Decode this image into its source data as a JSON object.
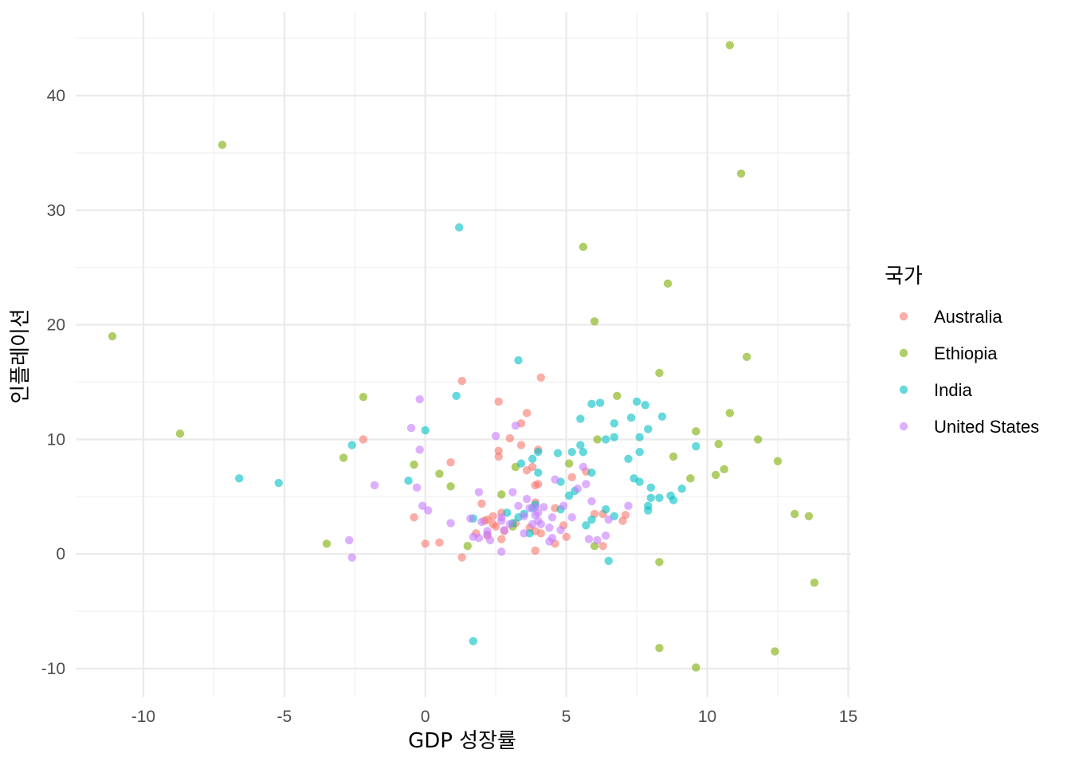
{
  "chart_data": {
    "type": "scatter",
    "title": "",
    "xlabel": "GDP 성장률",
    "ylabel": "인플레이션",
    "xlim": [
      -12.4,
      15.1
    ],
    "ylim": [
      -12.5,
      47.3
    ],
    "xticks": [
      -10,
      -5,
      0,
      5,
      10,
      15
    ],
    "yticks": [
      -10,
      0,
      10,
      20,
      30,
      40
    ],
    "grid": true,
    "legend": {
      "title": "국가",
      "position": "right"
    },
    "series": [
      {
        "name": "Australia",
        "color": "#F8766D",
        "points": [
          [
            1.3,
            15.1
          ],
          [
            4.1,
            15.4
          ],
          [
            2.6,
            13.3
          ],
          [
            3.6,
            12.3
          ],
          [
            3.4,
            11.4
          ],
          [
            -2.2,
            10.0
          ],
          [
            3.0,
            10.1
          ],
          [
            3.4,
            9.5
          ],
          [
            2.6,
            9.0
          ],
          [
            4.0,
            9.1
          ],
          [
            2.6,
            8.5
          ],
          [
            0.9,
            8.0
          ],
          [
            3.8,
            7.6
          ],
          [
            3.6,
            7.3
          ],
          [
            5.7,
            7.2
          ],
          [
            5.2,
            6.7
          ],
          [
            4.0,
            6.1
          ],
          [
            3.9,
            6.0
          ],
          [
            2.0,
            4.4
          ],
          [
            3.9,
            4.5
          ],
          [
            4.6,
            4.0
          ],
          [
            -0.4,
            3.2
          ],
          [
            2.4,
            3.3
          ],
          [
            2.2,
            3.0
          ],
          [
            2.7,
            3.6
          ],
          [
            6.0,
            3.5
          ],
          [
            6.3,
            3.5
          ],
          [
            7.1,
            3.4
          ],
          [
            7.0,
            2.9
          ],
          [
            4.9,
            2.5
          ],
          [
            2.5,
            2.4
          ],
          [
            3.7,
            2.3
          ],
          [
            2.8,
            2.0
          ],
          [
            3.9,
            2.0
          ],
          [
            4.1,
            1.8
          ],
          [
            1.8,
            1.8
          ],
          [
            2.2,
            1.6
          ],
          [
            5.0,
            1.5
          ],
          [
            2.7,
            1.3
          ],
          [
            0.5,
            1.0
          ],
          [
            0.0,
            0.9
          ],
          [
            4.6,
            0.9
          ],
          [
            6.3,
            0.7
          ],
          [
            3.9,
            0.3
          ],
          [
            1.3,
            -0.3
          ],
          [
            2.4,
            2.6
          ],
          [
            3.2,
            2.7
          ],
          [
            2.1,
            2.9
          ]
        ]
      },
      {
        "name": "Ethiopia",
        "color": "#7CAE00",
        "points": [
          [
            10.8,
            44.4
          ],
          [
            -7.2,
            35.7
          ],
          [
            11.2,
            33.2
          ],
          [
            5.6,
            26.8
          ],
          [
            8.6,
            23.6
          ],
          [
            -11.1,
            19.0
          ],
          [
            6.0,
            20.3
          ],
          [
            11.4,
            17.2
          ],
          [
            8.3,
            15.8
          ],
          [
            -2.2,
            13.7
          ],
          [
            6.8,
            13.8
          ],
          [
            10.8,
            12.3
          ],
          [
            -8.7,
            10.5
          ],
          [
            9.6,
            10.7
          ],
          [
            6.1,
            10.0
          ],
          [
            10.4,
            9.6
          ],
          [
            11.8,
            10.0
          ],
          [
            -2.9,
            8.4
          ],
          [
            8.8,
            8.5
          ],
          [
            12.5,
            8.1
          ],
          [
            -0.4,
            7.8
          ],
          [
            5.1,
            7.9
          ],
          [
            10.6,
            7.4
          ],
          [
            3.2,
            7.6
          ],
          [
            10.3,
            6.9
          ],
          [
            0.5,
            7.0
          ],
          [
            9.4,
            6.6
          ],
          [
            0.9,
            5.9
          ],
          [
            2.7,
            5.2
          ],
          [
            13.1,
            3.5
          ],
          [
            13.6,
            3.3
          ],
          [
            3.1,
            2.4
          ],
          [
            -3.5,
            0.9
          ],
          [
            1.5,
            0.7
          ],
          [
            6.0,
            0.7
          ],
          [
            8.3,
            -0.7
          ],
          [
            13.8,
            -2.5
          ],
          [
            8.3,
            -8.2
          ],
          [
            9.6,
            -9.9
          ],
          [
            12.4,
            -8.5
          ]
        ]
      },
      {
        "name": "India",
        "color": "#00BFC4",
        "points": [
          [
            1.2,
            28.5
          ],
          [
            3.3,
            16.9
          ],
          [
            1.1,
            13.8
          ],
          [
            7.8,
            13.0
          ],
          [
            7.5,
            13.3
          ],
          [
            6.2,
            13.2
          ],
          [
            5.9,
            13.1
          ],
          [
            8.4,
            12.0
          ],
          [
            7.3,
            11.9
          ],
          [
            5.5,
            11.8
          ],
          [
            6.7,
            11.4
          ],
          [
            0.0,
            10.8
          ],
          [
            7.9,
            10.9
          ],
          [
            6.4,
            10.0
          ],
          [
            6.7,
            10.2
          ],
          [
            7.6,
            10.2
          ],
          [
            -2.6,
            9.5
          ],
          [
            5.5,
            9.5
          ],
          [
            9.6,
            9.4
          ],
          [
            5.6,
            8.9
          ],
          [
            5.2,
            8.9
          ],
          [
            4.7,
            8.8
          ],
          [
            4.0,
            8.9
          ],
          [
            7.6,
            8.9
          ],
          [
            7.2,
            8.3
          ],
          [
            3.8,
            8.3
          ],
          [
            3.4,
            7.9
          ],
          [
            4.0,
            7.1
          ],
          [
            5.9,
            7.1
          ],
          [
            7.4,
            6.6
          ],
          [
            7.6,
            6.3
          ],
          [
            4.8,
            6.3
          ],
          [
            -6.6,
            6.6
          ],
          [
            -5.2,
            6.2
          ],
          [
            -0.6,
            6.4
          ],
          [
            9.1,
            5.7
          ],
          [
            8.0,
            5.8
          ],
          [
            5.3,
            5.5
          ],
          [
            5.1,
            5.1
          ],
          [
            8.7,
            5.1
          ],
          [
            8.0,
            4.9
          ],
          [
            8.3,
            4.9
          ],
          [
            8.8,
            4.7
          ],
          [
            7.9,
            4.2
          ],
          [
            7.9,
            3.8
          ],
          [
            3.9,
            4.3
          ],
          [
            3.8,
            4.0
          ],
          [
            6.4,
            3.9
          ],
          [
            4.8,
            3.9
          ],
          [
            3.5,
            3.5
          ],
          [
            3.3,
            3.2
          ],
          [
            6.7,
            3.3
          ],
          [
            5.9,
            3.0
          ],
          [
            5.7,
            2.5
          ],
          [
            3.7,
            1.8
          ],
          [
            1.7,
            3.1
          ],
          [
            2.9,
            3.6
          ],
          [
            3.1,
            2.7
          ],
          [
            6.5,
            -0.6
          ],
          [
            1.7,
            -7.6
          ]
        ]
      },
      {
        "name": "United States",
        "color": "#C77CFF",
        "points": [
          [
            -0.2,
            13.5
          ],
          [
            3.2,
            11.2
          ],
          [
            -0.5,
            11.0
          ],
          [
            2.5,
            10.3
          ],
          [
            -0.2,
            9.1
          ],
          [
            5.6,
            7.6
          ],
          [
            4.6,
            6.5
          ],
          [
            5.7,
            6.1
          ],
          [
            -1.8,
            6.0
          ],
          [
            -0.3,
            5.8
          ],
          [
            5.4,
            5.7
          ],
          [
            3.1,
            5.4
          ],
          [
            1.9,
            5.4
          ],
          [
            3.6,
            4.8
          ],
          [
            5.9,
            4.6
          ],
          [
            -0.1,
            4.2
          ],
          [
            0.1,
            3.8
          ],
          [
            3.3,
            4.2
          ],
          [
            4.2,
            4.1
          ],
          [
            4.9,
            4.2
          ],
          [
            7.2,
            4.2
          ],
          [
            3.7,
            4.0
          ],
          [
            3.9,
            4.1
          ],
          [
            4.0,
            3.6
          ],
          [
            2.7,
            3.2
          ],
          [
            3.5,
            3.3
          ],
          [
            4.5,
            3.2
          ],
          [
            5.2,
            3.2
          ],
          [
            6.5,
            3.0
          ],
          [
            0.9,
            2.7
          ],
          [
            1.6,
            3.1
          ],
          [
            2.7,
            2.9
          ],
          [
            3.0,
            2.6
          ],
          [
            3.8,
            2.6
          ],
          [
            2.0,
            2.8
          ],
          [
            4.1,
            2.6
          ],
          [
            4.4,
            2.3
          ],
          [
            4.8,
            2.1
          ],
          [
            2.8,
            2.1
          ],
          [
            2.2,
            2.0
          ],
          [
            2.2,
            1.7
          ],
          [
            3.5,
            1.8
          ],
          [
            4.5,
            1.4
          ],
          [
            1.7,
            1.5
          ],
          [
            1.9,
            1.4
          ],
          [
            6.4,
            1.6
          ],
          [
            5.8,
            1.3
          ],
          [
            6.1,
            1.2
          ],
          [
            2.3,
            1.2
          ],
          [
            4.4,
            1.1
          ],
          [
            -2.7,
            1.2
          ],
          [
            -2.6,
            -0.3
          ],
          [
            2.7,
            0.2
          ],
          [
            4.0,
            2.9
          ],
          [
            3.9,
            3.4
          ]
        ]
      }
    ]
  }
}
